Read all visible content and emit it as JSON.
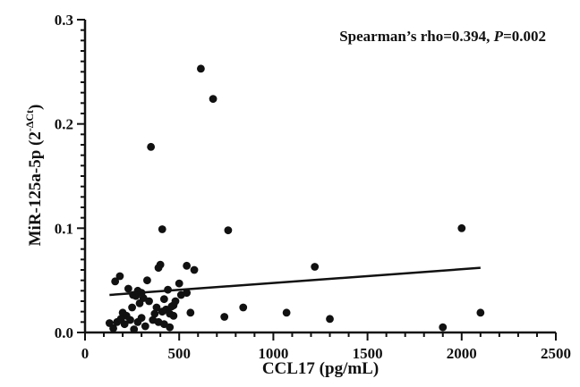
{
  "chart_data": {
    "type": "scatter",
    "title": "",
    "annotation": {
      "prefix": "Spearman’s rho=0.394, ",
      "p_symbol": "P",
      "suffix": "=0.002"
    },
    "xlabel": "CCL17 (pg/mL)",
    "ylabel": {
      "main": "MiR-125a-5p (2",
      "superscript": "-ΔCt",
      "close": ")"
    },
    "xlim": [
      0,
      2500
    ],
    "ylim": [
      0,
      0.3
    ],
    "x_ticks": [
      "0",
      "500",
      "1000",
      "1500",
      "2000",
      "2500"
    ],
    "y_ticks": [
      "0.0",
      "0.1",
      "0.2",
      "0.3"
    ],
    "grid": false,
    "legend": "none",
    "regression_line": {
      "x": [
        130,
        2100
      ],
      "y": [
        0.036,
        0.062
      ]
    },
    "point_color": "#111111",
    "series": [
      {
        "x": [
          615,
          680,
          350,
          410,
          760,
          2000,
          400,
          540,
          580,
          1220,
          185,
          160,
          230,
          255,
          280,
          310,
          330,
          380,
          420,
          440,
          470,
          500,
          200,
          220,
          250,
          270,
          290,
          300,
          340,
          370,
          390,
          410,
          430,
          450,
          460,
          480,
          510,
          540,
          560,
          740,
          840,
          1070,
          1300,
          1900,
          2100,
          130,
          150,
          170,
          190,
          210,
          240,
          260,
          280,
          300,
          320,
          360,
          390,
          420,
          450,
          470
        ],
        "y": [
          0.253,
          0.224,
          0.178,
          0.099,
          0.098,
          0.1,
          0.065,
          0.064,
          0.06,
          0.063,
          0.054,
          0.049,
          0.042,
          0.036,
          0.04,
          0.033,
          0.05,
          0.024,
          0.032,
          0.041,
          0.026,
          0.047,
          0.019,
          0.016,
          0.024,
          0.035,
          0.028,
          0.038,
          0.03,
          0.018,
          0.062,
          0.02,
          0.022,
          0.018,
          0.025,
          0.03,
          0.036,
          0.038,
          0.019,
          0.015,
          0.024,
          0.019,
          0.013,
          0.005,
          0.019,
          0.009,
          0.004,
          0.01,
          0.013,
          0.008,
          0.012,
          0.003,
          0.01,
          0.014,
          0.006,
          0.012,
          0.01,
          0.008,
          0.005,
          0.016
        ]
      }
    ]
  }
}
